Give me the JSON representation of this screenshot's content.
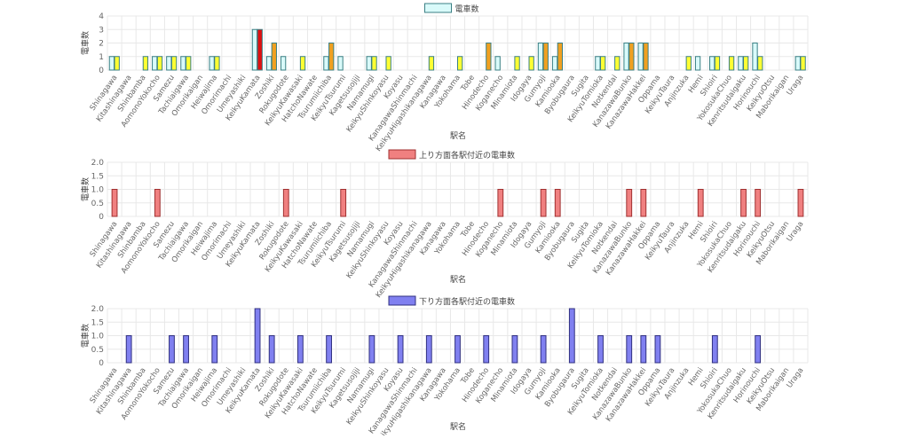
{
  "stations": [
    "Shinagawa",
    "Kitashinagawa",
    "Shinbamba",
    "AomonoYokocho",
    "Samezu",
    "Tachiaigawa",
    "Omorikaigan",
    "Heiwajima",
    "Omorimachi",
    "Umeyashiki",
    "KeikyuKamata",
    "Zoshiki",
    "Rokugodote",
    "KeikyuKawasaki",
    "HatchoNawate",
    "Tsurumiichiba",
    "KeikyuTsurumi",
    "Kagetsusojiji",
    "Namamugi",
    "KeikyuShinkoyasu",
    "Koyasu",
    "KanagawaShinmachi",
    "KeikyuHigashikanagawa",
    "Kanagawa",
    "Yokohama",
    "Tobe",
    "Hinodecho",
    "Koganecho",
    "Minamiota",
    "Idogaya",
    "Gumyoji",
    "Kamiooka",
    "Byobugaura",
    "Sugita",
    "KeikyuTomioka",
    "Notkendai",
    "KanazawaBunko",
    "KanazawaHakkei",
    "Oppama",
    "KeikyuTaura",
    "Anjinzuka",
    "Hemi",
    "Shioiri",
    "YokosukaChuo",
    "Kenritsudaigaku",
    "Horinouchi",
    "KeikyuOtsu",
    "Maborikaigan",
    "Uraga"
  ],
  "chart_data": [
    {
      "type": "bar",
      "legend": "電車数",
      "legend_position": "top",
      "xlabel": "駅名",
      "ylabel": "電車数",
      "ylim": [
        0,
        4
      ],
      "yticks": [
        0,
        1,
        2,
        3,
        4
      ],
      "grid": true,
      "categories_ref": "stations",
      "series": [
        {
          "values": [
            1,
            0,
            0,
            1,
            1,
            1,
            0,
            1,
            0,
            0,
            3,
            1,
            1,
            0,
            0,
            1,
            1,
            0,
            1,
            0,
            0,
            0,
            0,
            0,
            0,
            0,
            0,
            1,
            0,
            0,
            2,
            1,
            0,
            0,
            1,
            0,
            2,
            2,
            0,
            0,
            0,
            1,
            1,
            0,
            1,
            2,
            0,
            0,
            1
          ]
        },
        {
          "values": [
            1,
            0,
            1,
            1,
            1,
            1,
            0,
            1,
            0,
            0,
            3,
            2,
            0,
            1,
            0,
            2,
            0,
            0,
            1,
            1,
            0,
            0,
            1,
            0,
            1,
            0,
            2,
            0,
            1,
            1,
            2,
            2,
            0,
            0,
            1,
            1,
            2,
            2,
            0,
            0,
            1,
            0,
            1,
            1,
            1,
            1,
            0,
            0,
            1
          ]
        }
      ]
    },
    {
      "type": "bar",
      "legend": "上り方面各駅付近の電車数",
      "legend_position": "top",
      "xlabel": "駅名",
      "ylabel": "電車数",
      "ylim": [
        0,
        2
      ],
      "yticks": [
        0,
        0.5,
        1.0,
        1.5,
        2.0
      ],
      "grid": true,
      "categories_ref": "stations",
      "series": [
        {
          "values": [
            1,
            0,
            0,
            1,
            0,
            0,
            0,
            0,
            0,
            0,
            0,
            0,
            1,
            0,
            0,
            0,
            1,
            0,
            0,
            0,
            0,
            0,
            0,
            0,
            0,
            0,
            0,
            1,
            0,
            0,
            1,
            1,
            0,
            0,
            0,
            0,
            1,
            1,
            0,
            0,
            0,
            1,
            0,
            0,
            1,
            1,
            0,
            0,
            1
          ]
        }
      ]
    },
    {
      "type": "bar",
      "legend": "下り方面各駅付近の電車数",
      "legend_position": "top",
      "xlabel": "駅名",
      "ylabel": "電車数",
      "ylim": [
        0,
        2
      ],
      "yticks": [
        0,
        0.5,
        1.0,
        1.5,
        2.0
      ],
      "grid": true,
      "categories_ref": "stations",
      "series": [
        {
          "values": [
            0,
            1,
            0,
            0,
            1,
            1,
            0,
            1,
            0,
            0,
            2,
            1,
            0,
            1,
            0,
            1,
            0,
            0,
            1,
            0,
            1,
            0,
            1,
            0,
            1,
            0,
            1,
            0,
            1,
            0,
            1,
            0,
            2,
            0,
            1,
            0,
            1,
            1,
            1,
            0,
            0,
            0,
            1,
            0,
            0,
            1,
            0,
            0,
            0
          ]
        }
      ]
    }
  ],
  "colors": {
    "total_fill": "#d9fafa",
    "total_stroke": "#3a7f84",
    "total_hot_fill": "#ffff33",
    "total_orange_fill": "#f0a020",
    "total_red_fill": "#e01010",
    "up_fill": "#f08080",
    "up_stroke": "#a03030",
    "down_fill": "#8080f0",
    "down_stroke": "#303080",
    "grid": "#e8e8e8",
    "axis_text": "#666666"
  }
}
